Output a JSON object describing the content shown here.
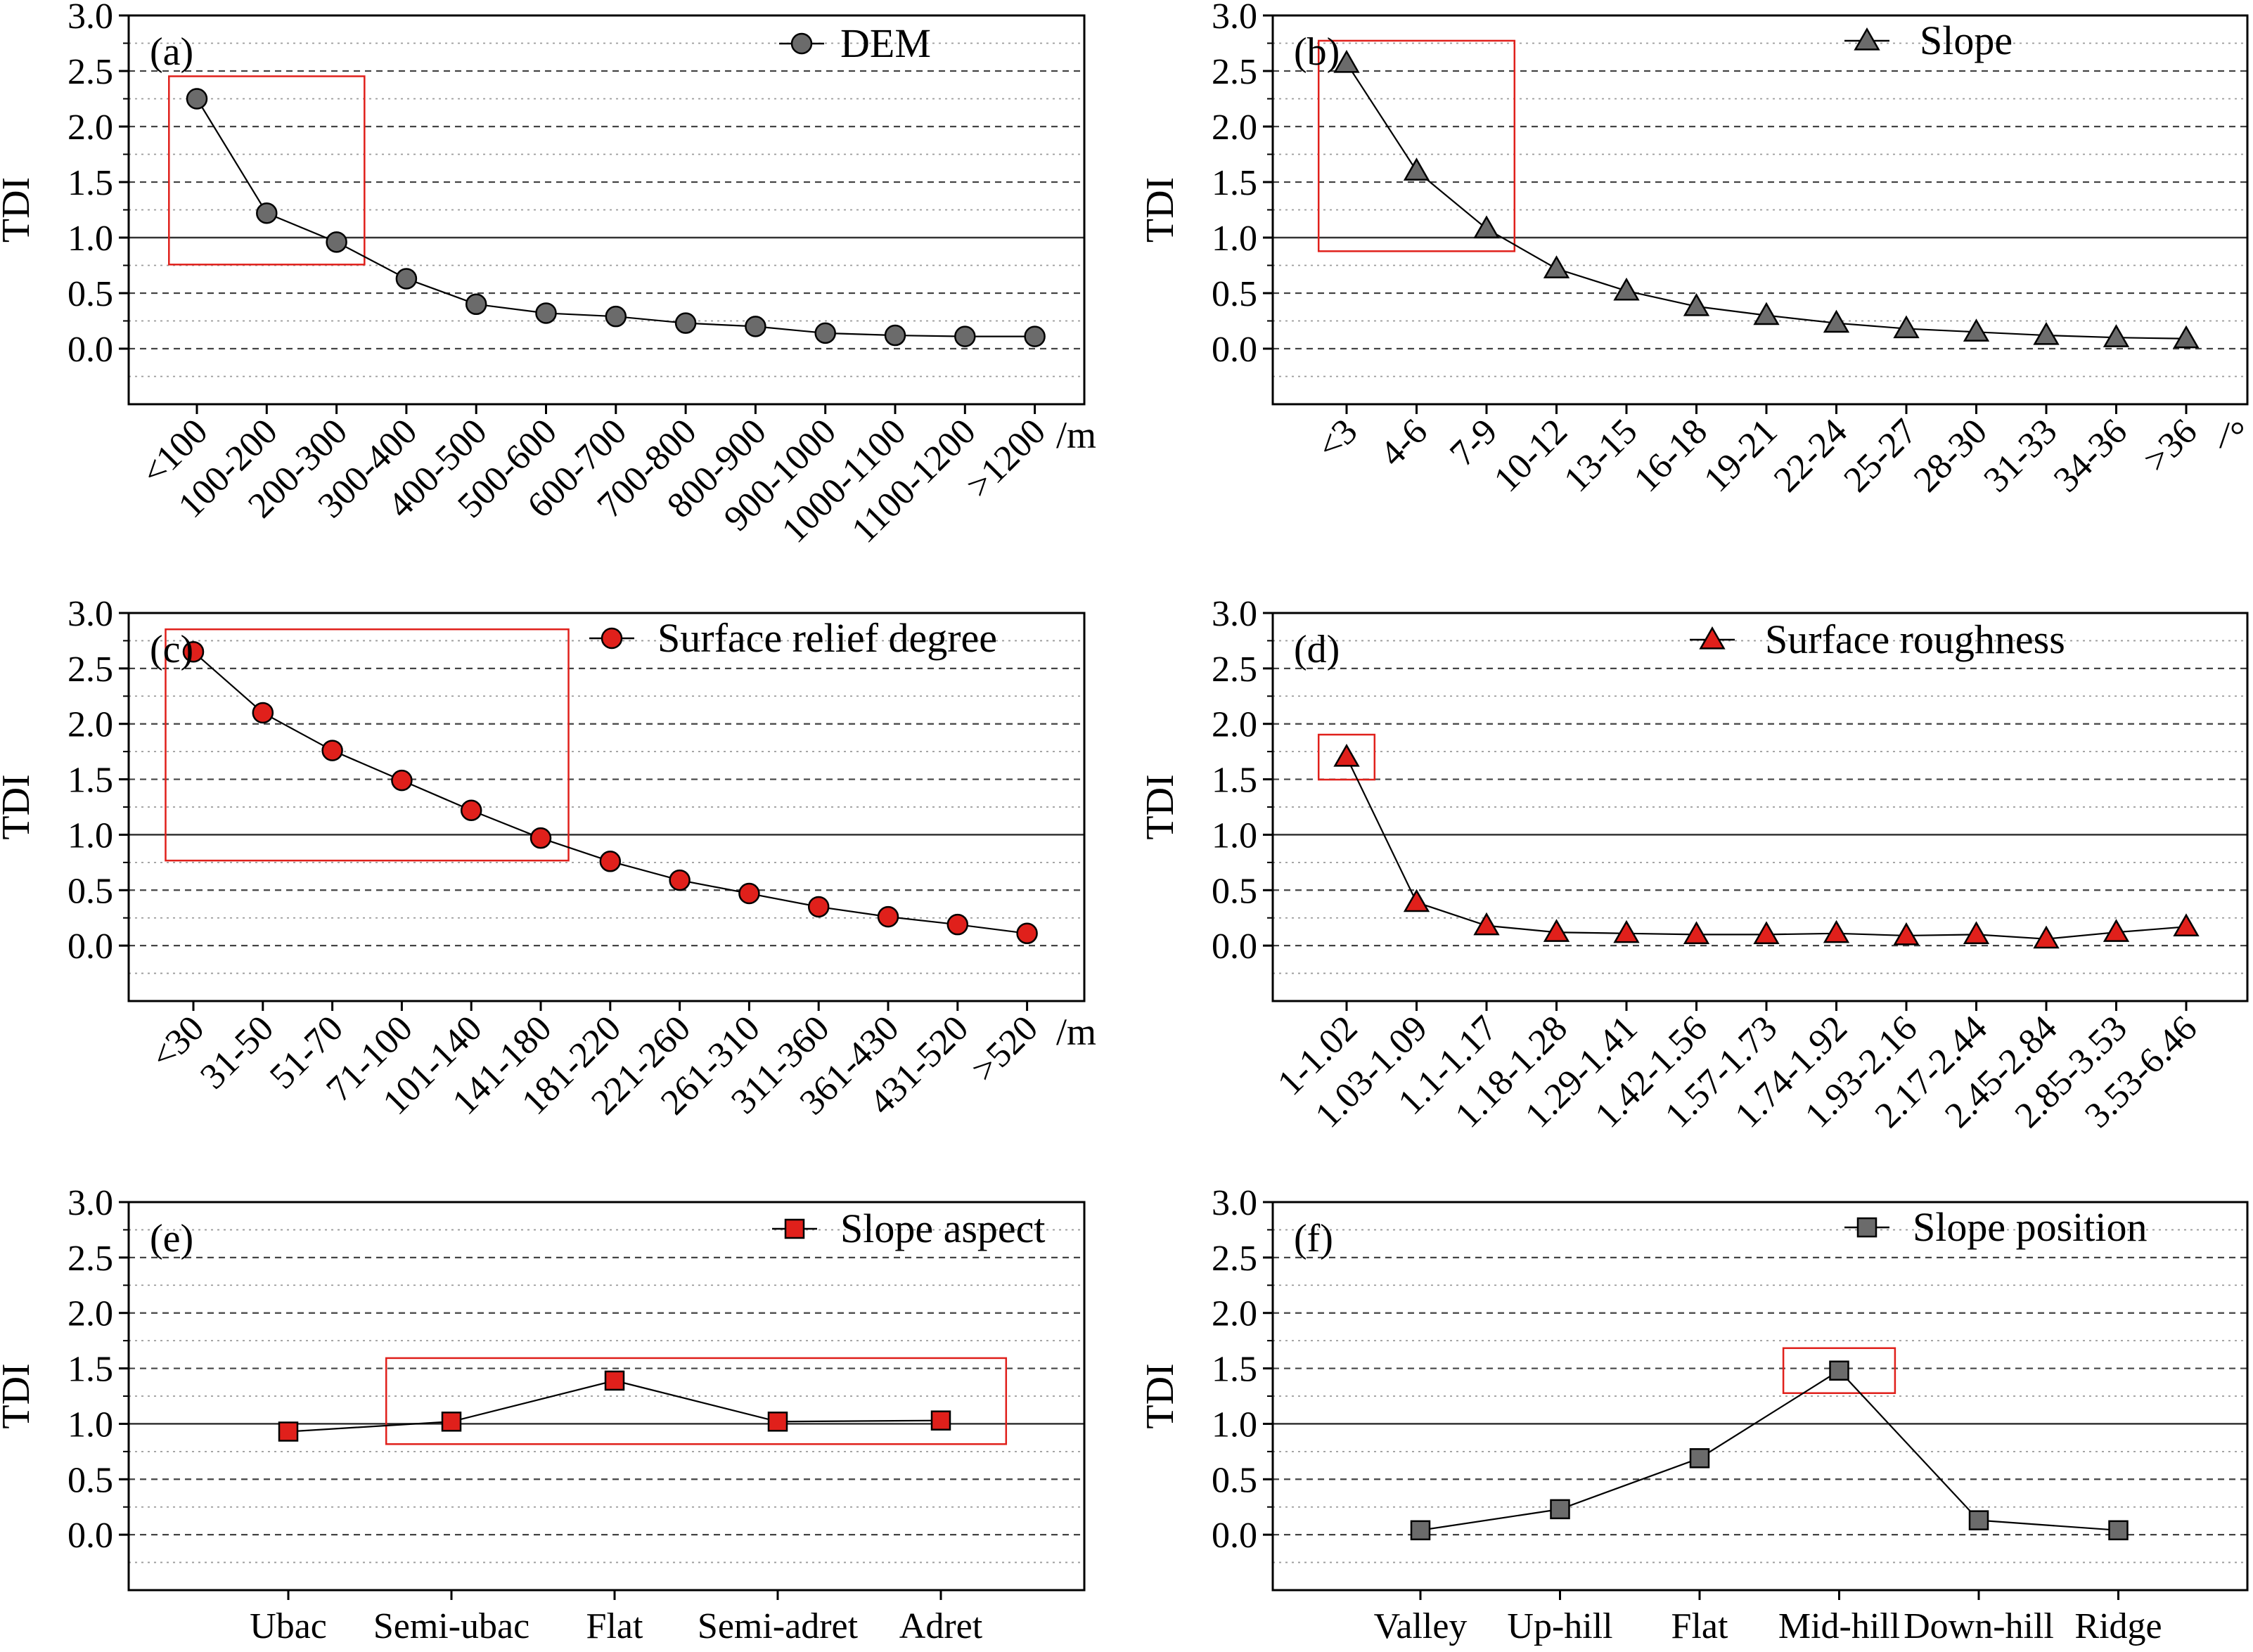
{
  "chart_data": [
    {
      "type": "line",
      "panel_label": "(a)",
      "ylabel": "TDI",
      "ylim": [
        -0.5,
        3.0
      ],
      "yticks": [
        "3.0",
        "2.5",
        "2.0",
        "1.5",
        "1.0",
        "0.5",
        "0.0"
      ],
      "xunit": "/m",
      "categories": [
        "<100",
        "100-200",
        "200-300",
        "300-400",
        "400-500",
        "500-600",
        "600-700",
        "700-800",
        "800-900",
        "900-1000",
        "1000-1100",
        "1100-1200",
        ">1200"
      ],
      "series": [
        {
          "name": "DEM",
          "values": [
            2.25,
            1.22,
            0.96,
            0.63,
            0.4,
            0.32,
            0.29,
            0.23,
            0.2,
            0.14,
            0.12,
            0.11,
            0.11
          ]
        }
      ],
      "marker": "circle",
      "marker_color": "#6b6b6b",
      "legend_position": "top-right",
      "highlight_range": [
        0,
        2
      ],
      "label_rotation": "angled"
    },
    {
      "type": "line",
      "panel_label": "(b)",
      "ylabel": "TDI",
      "ylim": [
        -0.5,
        3.0
      ],
      "yticks": [
        "3.0",
        "2.5",
        "2.0",
        "1.5",
        "1.0",
        "0.5",
        "0.0"
      ],
      "xunit": "/°",
      "categories": [
        "<3",
        "4-6",
        "7-9",
        "10-12",
        "13-15",
        "16-18",
        "19-21",
        "22-24",
        "25-27",
        "28-30",
        "31-33",
        "34-36",
        ">36"
      ],
      "series": [
        {
          "name": "Slope",
          "values": [
            2.57,
            1.6,
            1.08,
            0.72,
            0.52,
            0.38,
            0.3,
            0.23,
            0.18,
            0.15,
            0.12,
            0.1,
            0.09
          ]
        }
      ],
      "marker": "triangle",
      "marker_color": "#6b6b6b",
      "legend_position": "top-right",
      "highlight_range": [
        0,
        2
      ],
      "label_rotation": "angled"
    },
    {
      "type": "line",
      "panel_label": "(c)",
      "ylabel": "TDI",
      "ylim": [
        -0.5,
        3.0
      ],
      "yticks": [
        "3.0",
        "2.5",
        "2.0",
        "1.5",
        "1.0",
        "0.5",
        "0.0"
      ],
      "xunit": "/m",
      "categories": [
        "<30",
        "31-50",
        "51-70",
        "71-100",
        "101-140",
        "141-180",
        "181-220",
        "221-260",
        "261-310",
        "311-360",
        "361-430",
        "431-520",
        ">520"
      ],
      "series": [
        {
          "name": "Surface relief degree",
          "values": [
            2.65,
            2.1,
            1.76,
            1.49,
            1.22,
            0.97,
            0.76,
            0.59,
            0.47,
            0.35,
            0.26,
            0.19,
            0.11
          ]
        }
      ],
      "marker": "circle",
      "marker_color": "#e0201b",
      "legend_position": "top-right",
      "highlight_range": [
        0,
        5
      ],
      "label_rotation": "angled"
    },
    {
      "type": "line",
      "panel_label": "(d)",
      "ylabel": "TDI",
      "ylim": [
        -0.5,
        3.0
      ],
      "yticks": [
        "3.0",
        "2.5",
        "2.0",
        "1.5",
        "1.0",
        "0.5",
        "0.0"
      ],
      "xunit": "",
      "categories": [
        "1-1.02",
        "1.03-1.09",
        "1.1-1.17",
        "1.18-1.28",
        "1.29-1.41",
        "1.42-1.56",
        "1.57-1.73",
        "1.74-1.92",
        "1.93-2.16",
        "2.17-2.44",
        "2.45-2.84",
        "2.85-3.53",
        "3.53-6.46"
      ],
      "series": [
        {
          "name": "Surface roughness",
          "values": [
            1.7,
            0.39,
            0.18,
            0.12,
            0.11,
            0.1,
            0.1,
            0.11,
            0.09,
            0.1,
            0.06,
            0.12,
            0.17
          ]
        }
      ],
      "marker": "triangle",
      "marker_color": "#e0201b",
      "legend_position": "top-right",
      "highlight_range": [
        0,
        0
      ],
      "label_rotation": "angled"
    },
    {
      "type": "line",
      "panel_label": "(e)",
      "ylabel": "TDI",
      "ylim": [
        -0.5,
        3.0
      ],
      "yticks": [
        "3.0",
        "2.5",
        "2.0",
        "1.5",
        "1.0",
        "0.5",
        "0.0"
      ],
      "xunit": "",
      "categories": [
        "Ubac",
        "Semi-ubac",
        "Flat",
        "Semi-adret",
        "Adret"
      ],
      "series": [
        {
          "name": "Slope aspect",
          "values": [
            0.93,
            1.02,
            1.39,
            1.02,
            1.03
          ]
        }
      ],
      "marker": "square",
      "marker_color": "#e0201b",
      "legend_position": "top-right",
      "highlight_range": [
        1,
        4
      ],
      "label_rotation": "horizontal"
    },
    {
      "type": "line",
      "panel_label": "(f)",
      "ylabel": "TDI",
      "ylim": [
        -0.5,
        3.0
      ],
      "yticks": [
        "3.0",
        "2.5",
        "2.0",
        "1.5",
        "1.0",
        "0.5",
        "0.0"
      ],
      "xunit": "",
      "categories": [
        "Valley",
        "Up-hill",
        "Flat",
        "Mid-hill",
        "Down-hill",
        "Ridge"
      ],
      "series": [
        {
          "name": "Slope position",
          "values": [
            0.04,
            0.23,
            0.69,
            1.48,
            0.13,
            0.04
          ]
        }
      ],
      "marker": "square",
      "marker_color": "#6b6b6b",
      "legend_position": "top-right",
      "highlight_range": [
        3,
        3
      ],
      "label_rotation": "horizontal"
    }
  ]
}
